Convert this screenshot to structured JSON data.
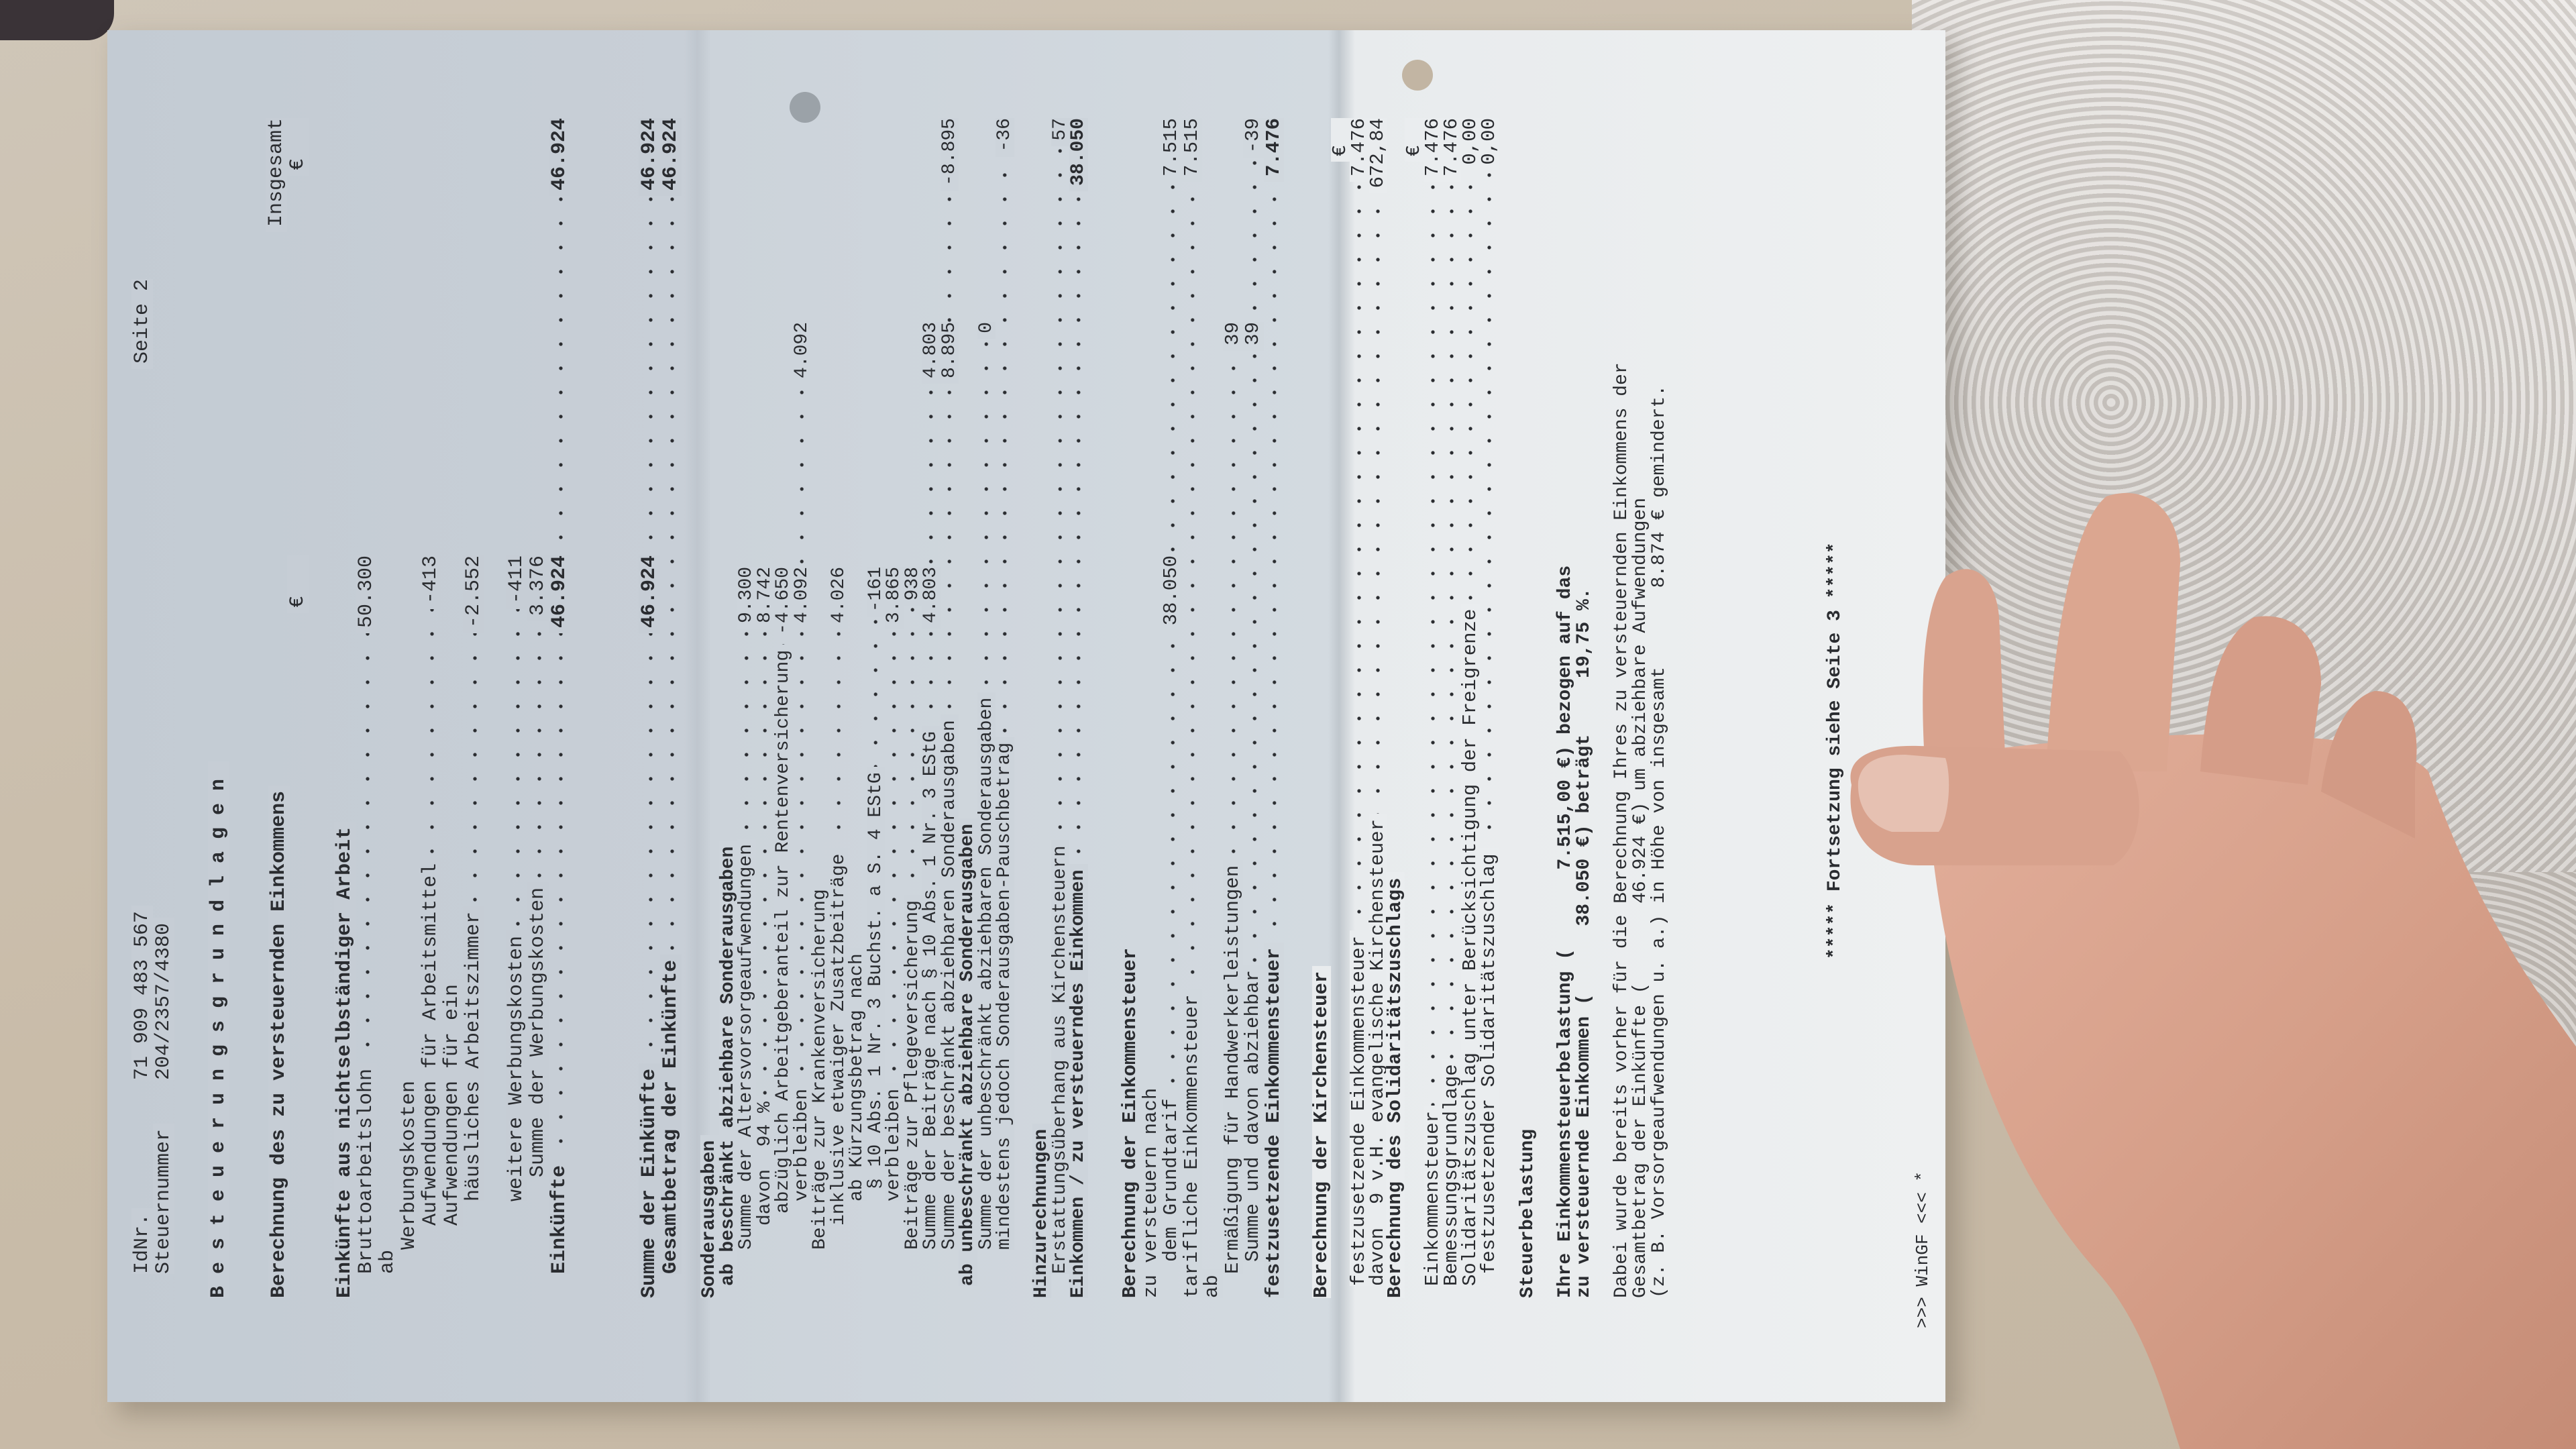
{
  "header": {
    "idnr_label": "IdNr.",
    "idnr": "71 909 483 567",
    "steuernummer_label": "Steuernummer",
    "steuernummer": "204/2357/4380",
    "page": "Seite 2"
  },
  "title": "Besteuerungsgrundlagen",
  "einkommen": {
    "heading": "Berechnung des zu versteuernden Einkommens",
    "col_total_label": "Insgesamt",
    "currency": "€",
    "rows": [
      {
        "label": "Einkünfte aus nichtselbständiger Arbeit"
      },
      {
        "label": "Bruttoarbeitslohn",
        "col1": "50.300"
      },
      {
        "label": "ab"
      },
      {
        "label": "Werbungskosten"
      },
      {
        "label": "Aufwendungen für Arbeitsmittel",
        "col1": "-413"
      },
      {
        "label": "Aufwendungen für ein"
      },
      {
        "label": "häusliches Arbeitszimmer",
        "col1": "-2.552"
      },
      {
        "label": "weitere Werbungskosten",
        "col1": "-411"
      },
      {
        "label": "Summe der Werbungskosten",
        "col1": "3.376"
      },
      {
        "label": "Einkünfte",
        "col1": "46.924",
        "total": "46.924"
      },
      {
        "label": "Summe der Einkünfte",
        "col1": "46.924",
        "total": "46.924"
      },
      {
        "label": "Gesamtbetrag der Einkünfte",
        "total": "46.924"
      }
    ]
  },
  "sonderausgaben": {
    "rows": [
      {
        "label": "Sonderausgaben"
      },
      {
        "label": "ab beschränkt abziehbare Sonderausgaben"
      },
      {
        "label": "Summe der Altersvorsorgeaufwendungen",
        "sub": "9.300"
      },
      {
        "label": "davon  94 %",
        "sub": "8.742"
      },
      {
        "label": "abzüglich Arbeitgeberanteil zur Rentenversicherung",
        "sub": "-4.650"
      },
      {
        "label": "verbleiben",
        "sub": "4.092",
        "col2": "4.092"
      },
      {
        "label": "Beiträge zur Krankenversicherung"
      },
      {
        "label": "inklusive etwaiger Zusatzbeiträge",
        "sub": "4.026"
      },
      {
        "label": "ab Kürzungsbetrag nach"
      },
      {
        "label": "§ 10 Abs. 1 Nr. 3 Buchst. a S. 4 EStG",
        "sub": "-161"
      },
      {
        "label": "verbleiben",
        "sub": "3.865"
      },
      {
        "label": "Beiträge zur Pflegeversicherung",
        "sub": "938"
      },
      {
        "label": "Summe der Beiträge nach § 10 Abs. 1 Nr. 3 EStG",
        "sub": "4.803",
        "col2": "4.803"
      },
      {
        "label": "Summe der beschränkt abziehbaren Sonderausgaben",
        "col2": "8.895",
        "total": "-8.895"
      },
      {
        "label": "ab unbeschränkt abziehbare Sonderausgaben"
      },
      {
        "label": "Summe der unbeschränkt abziehbaren Sonderausgaben",
        "col2": "0"
      },
      {
        "label": "mindestens jedoch Sonderausgaben-Pauschbetrag",
        "total": "-36"
      },
      {
        "label": "Hinzurechnungen"
      },
      {
        "label": "Erstattungsüberhang aus Kirchensteuern",
        "total": "57"
      },
      {
        "label": "Einkommen / zu versteuerndes Einkommen",
        "total": "38.050"
      }
    ]
  },
  "einkommensteuer": {
    "rows": [
      {
        "label": "Berechnung der Einkommensteuer"
      },
      {
        "label": "zu versteuern nach"
      },
      {
        "label": "dem Grundtarif",
        "col1": "38.050",
        "total": "7.515"
      },
      {
        "label": "tarifliche Einkommensteuer",
        "total": "7.515"
      },
      {
        "label": "ab"
      },
      {
        "label": "Ermäßigung für Handwerkerleistungen",
        "col2": "39"
      },
      {
        "label": "Summe und davon abziehbar",
        "col2": "39",
        "total": "-39"
      },
      {
        "label": "festzusetzende Einkommensteuer",
        "total": "7.476"
      }
    ]
  },
  "kirchensteuer": {
    "heading": "Berechnung der Kirchensteuer",
    "currency": "€",
    "rows": [
      {
        "label": "festzusetzende Einkommensteuer",
        "total": "7.476"
      },
      {
        "label": "davon  9 v.H. evangelische Kirchensteuer",
        "total": "672,84"
      }
    ]
  },
  "soli": {
    "heading": "Berechnung des Solidaritätszuschlags",
    "currency": "€",
    "rows": [
      {
        "label": "Einkommensteuer",
        "total": "7.476"
      },
      {
        "label": "Bemessungsgrundlage",
        "total": "7.476"
      },
      {
        "label": "Solidaritätszuschlag unter Berücksichtigung der Freigrenze",
        "total": "0,00"
      },
      {
        "label": "festzusetzender Solidaritätszuschlag",
        "total": "0,00"
      }
    ]
  },
  "steuerbelastung": {
    "heading": "Steuerbelastung",
    "line1": "Ihre Einkommensteuerbelastung (       7.515,00 €) bezogen auf das",
    "line2": "zu versteuernde Einkommen (      38.050 €) beträgt     19,75 %.",
    "note1": "Dabei wurde bereits vorher für die Berechnung Ihres zu versteuernden Einkommens der",
    "note2": "Gesamtbetrag der Einkünfte (       46.924 €) um abziehbare Aufwendungen",
    "note3": "(z. B. Vorsorgeaufwendungen u. a.) in Höhe von insgesamt       8.874 € gemindert."
  },
  "footer": {
    "continuation": "***** Fortsetzung siehe Seite 3 *****",
    "program": ">>> WinGF <<< *"
  },
  "colors": {
    "paper": "#c8cfd7",
    "paper_light": "#eef0f1",
    "ink": "#2a2c30",
    "skin": "#d9a38e",
    "sofa": "#c9bca9",
    "blanket": "#d6d1cc"
  }
}
